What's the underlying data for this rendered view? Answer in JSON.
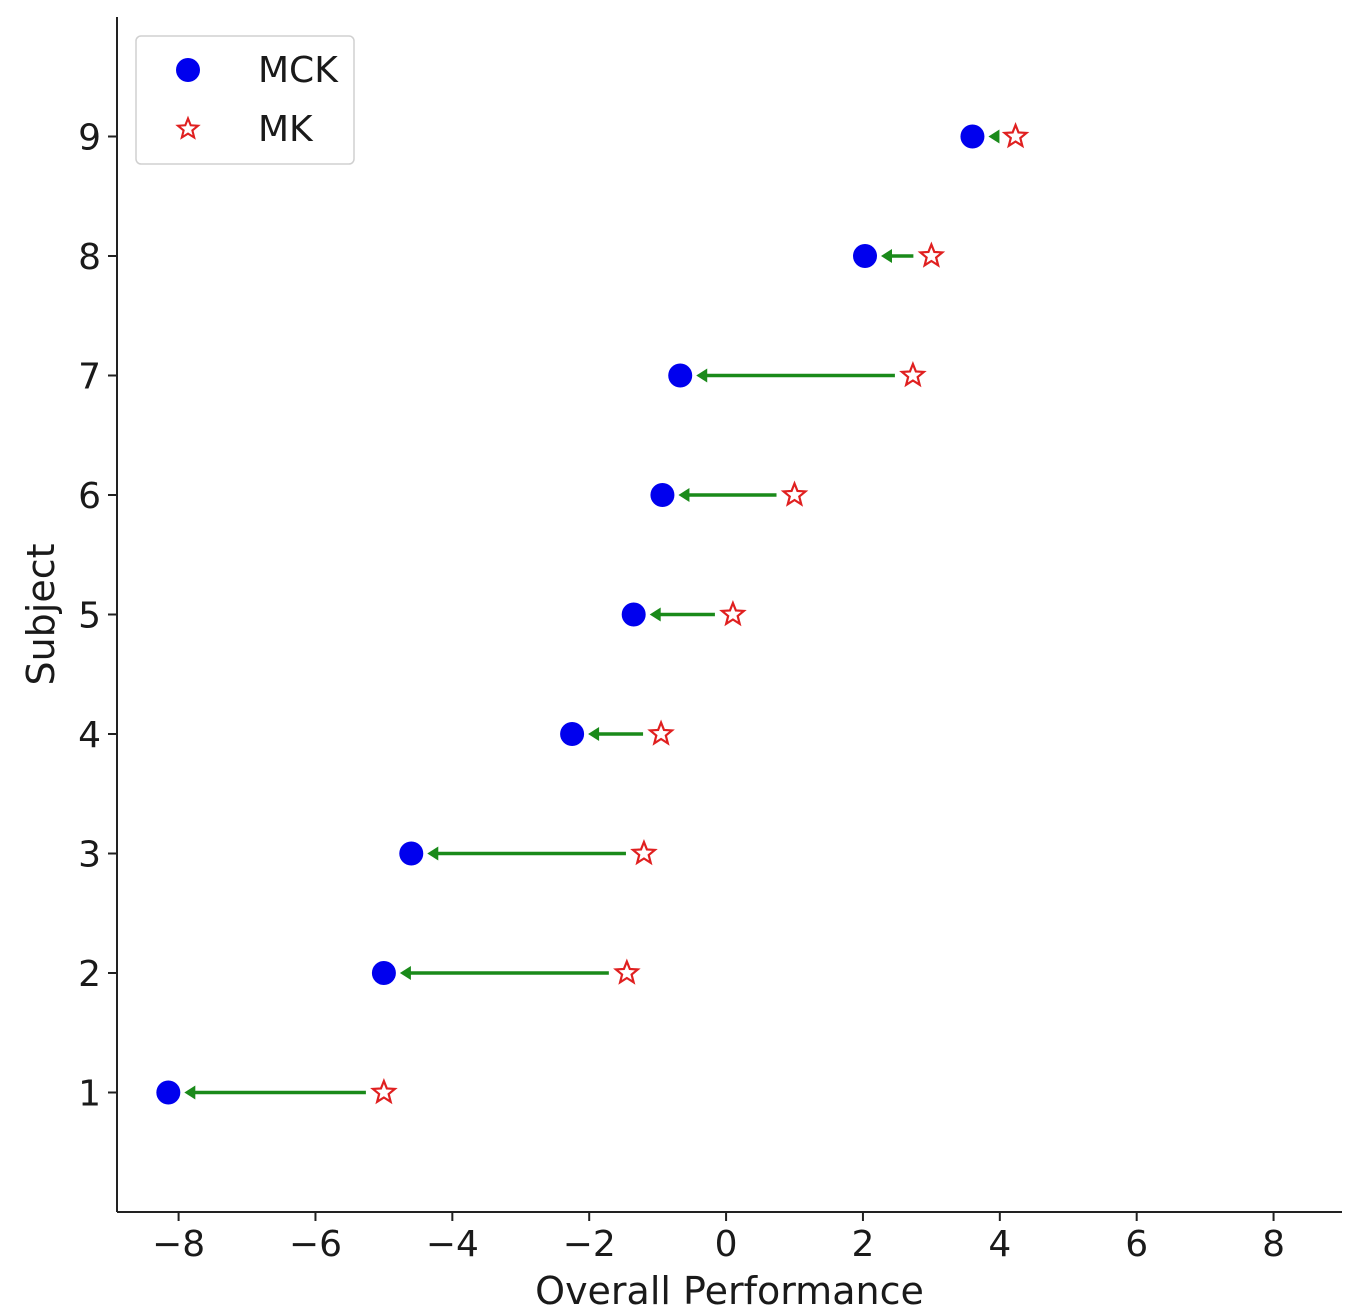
{
  "chart_data": {
    "type": "scatter",
    "title": "",
    "xlabel": "Overall Performance",
    "ylabel": "Subject",
    "xlim": [
      -8.9,
      9.0
    ],
    "ylim": [
      0.0,
      10.0
    ],
    "xticks": [
      -8,
      -6,
      -4,
      -2,
      0,
      2,
      4,
      6,
      8
    ],
    "xtick_labels": [
      "−8",
      "−6",
      "−4",
      "−2",
      "0",
      "2",
      "4",
      "6",
      "8"
    ],
    "yticks": [
      1,
      2,
      3,
      4,
      5,
      6,
      7,
      8,
      9
    ],
    "ytick_labels": [
      "1",
      "2",
      "3",
      "4",
      "5",
      "6",
      "7",
      "8",
      "9"
    ],
    "grid": false,
    "legend_position": "top-left",
    "series": [
      {
        "name": "MCK",
        "marker": "circle",
        "color": "#0000ee",
        "points": [
          {
            "subject": 1,
            "x": -8.15
          },
          {
            "subject": 2,
            "x": -5.0
          },
          {
            "subject": 3,
            "x": -4.6
          },
          {
            "subject": 4,
            "x": -2.25
          },
          {
            "subject": 5,
            "x": -1.35
          },
          {
            "subject": 6,
            "x": -0.93
          },
          {
            "subject": 7,
            "x": -0.67
          },
          {
            "subject": 8,
            "x": 2.03
          },
          {
            "subject": 9,
            "x": 3.6
          }
        ]
      },
      {
        "name": "MK",
        "marker": "star",
        "color": "#e02020",
        "points": [
          {
            "subject": 1,
            "x": -5.0
          },
          {
            "subject": 2,
            "x": -1.45
          },
          {
            "subject": 3,
            "x": -1.2
          },
          {
            "subject": 4,
            "x": -0.95
          },
          {
            "subject": 5,
            "x": 0.1
          },
          {
            "subject": 6,
            "x": 1.0
          },
          {
            "subject": 7,
            "x": 2.73
          },
          {
            "subject": 8,
            "x": 3.0
          },
          {
            "subject": 9,
            "x": 4.23
          }
        ]
      }
    ],
    "arrows": {
      "color": "#1a8a1a",
      "from_series": "MK",
      "to_series": "MCK"
    }
  }
}
